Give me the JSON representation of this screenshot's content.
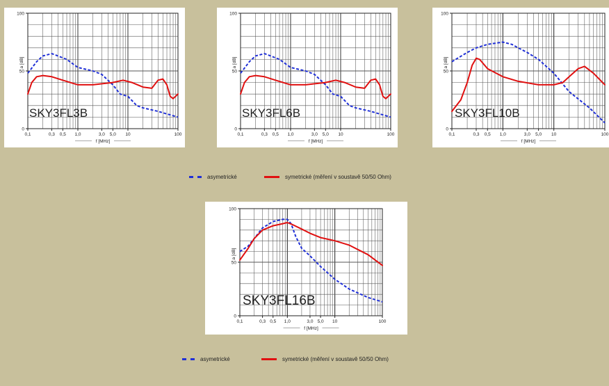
{
  "colors": {
    "background": "#c8c09c",
    "asym": "#1f2fd6",
    "sym": "#e01010"
  },
  "legend": {
    "asym_label": "asymetrické",
    "sym_label": "symetrické (měření v soustavě 50/50 Ohm)"
  },
  "chart_data": [
    {
      "type": "line",
      "title": "SKY3FL3B",
      "xlabel": "f [MHz]",
      "ylabel": "a [dB]",
      "xscale": "log",
      "xlim": [
        0.1,
        100
      ],
      "ylim": [
        0,
        100
      ],
      "xticks": [
        "0,1",
        "0,3",
        "0,5",
        "1,0",
        "3,0",
        "5,0",
        "10",
        "100"
      ],
      "yticks": [
        "0",
        "50",
        "100"
      ],
      "series": [
        {
          "name": "asymetrické",
          "style": "dashed",
          "x": [
            0.1,
            0.15,
            0.2,
            0.3,
            0.4,
            0.6,
            1.0,
            2.0,
            3.0,
            5.0,
            7.0,
            10,
            15,
            20,
            40,
            100
          ],
          "y": [
            48,
            58,
            63,
            65,
            63,
            60,
            53,
            50,
            47,
            38,
            30,
            28,
            20,
            18,
            15,
            10
          ]
        },
        {
          "name": "symetrické (měření v soustavě 50/50 Ohm)",
          "style": "solid",
          "x": [
            0.1,
            0.12,
            0.15,
            0.2,
            0.3,
            0.5,
            1.0,
            2.0,
            5.0,
            8.0,
            12,
            20,
            30,
            40,
            50,
            60,
            70,
            80,
            100
          ],
          "y": [
            30,
            40,
            45,
            46,
            45,
            42,
            38,
            38,
            40,
            42,
            40,
            36,
            35,
            42,
            43,
            38,
            28,
            26,
            30
          ]
        }
      ]
    },
    {
      "type": "line",
      "title": "SKY3FL6B",
      "xlabel": "f [MHz]",
      "ylabel": "a [dB]",
      "xscale": "log",
      "xlim": [
        0.1,
        100
      ],
      "ylim": [
        0,
        100
      ],
      "xticks": [
        "0,1",
        "0,3",
        "0,5",
        "1,0",
        "3,0",
        "5,0",
        "10",
        "100"
      ],
      "yticks": [
        "0",
        "50",
        "100"
      ],
      "series": [
        {
          "name": "asymetrické",
          "style": "dashed",
          "x": [
            0.1,
            0.15,
            0.2,
            0.3,
            0.4,
            0.6,
            1.0,
            2.0,
            3.0,
            5.0,
            7.0,
            10,
            15,
            20,
            40,
            100
          ],
          "y": [
            48,
            58,
            63,
            65,
            63,
            60,
            53,
            50,
            47,
            38,
            30,
            28,
            20,
            18,
            15,
            10
          ]
        },
        {
          "name": "symetrické (měření v soustavě 50/50 Ohm)",
          "style": "solid",
          "x": [
            0.1,
            0.12,
            0.15,
            0.2,
            0.3,
            0.5,
            1.0,
            2.0,
            5.0,
            8.0,
            12,
            20,
            30,
            40,
            50,
            60,
            70,
            80,
            100
          ],
          "y": [
            30,
            40,
            45,
            46,
            45,
            42,
            38,
            38,
            40,
            42,
            40,
            36,
            35,
            42,
            43,
            38,
            28,
            26,
            30
          ]
        }
      ]
    },
    {
      "type": "line",
      "title": "SKY3FL10B",
      "xlabel": "f [MHz]",
      "ylabel": "a [dB]",
      "xscale": "log",
      "xlim": [
        0.1,
        100
      ],
      "ylim": [
        0,
        100
      ],
      "xticks": [
        "0,1",
        "0,3",
        "0,5",
        "1,0",
        "3,0",
        "5,0",
        "10",
        "100"
      ],
      "yticks": [
        "0",
        "50",
        "100"
      ],
      "series": [
        {
          "name": "asymetrické",
          "style": "dashed",
          "x": [
            0.1,
            0.2,
            0.3,
            0.5,
            0.7,
            1.0,
            1.5,
            2.0,
            3.0,
            5.0,
            10,
            20,
            50,
            100
          ],
          "y": [
            58,
            66,
            70,
            73,
            74,
            75,
            73,
            70,
            66,
            60,
            48,
            32,
            18,
            5
          ]
        },
        {
          "name": "symetrické (měření v soustavě 50/50 Ohm)",
          "style": "solid",
          "x": [
            0.1,
            0.15,
            0.2,
            0.25,
            0.3,
            0.35,
            0.5,
            1.0,
            2.0,
            5.0,
            10,
            15,
            20,
            30,
            40,
            60,
            100
          ],
          "y": [
            15,
            25,
            40,
            55,
            61,
            60,
            52,
            45,
            41,
            38,
            38,
            40,
            45,
            52,
            54,
            48,
            38
          ]
        }
      ]
    },
    {
      "type": "line",
      "title": "SKY3FL16B",
      "xlabel": "f [MHz]",
      "ylabel": "a [dB]",
      "xscale": "log",
      "xlim": [
        0.1,
        100
      ],
      "ylim": [
        0,
        100
      ],
      "xticks": [
        "0,1",
        "0,3",
        "0,5",
        "1,0",
        "3,0",
        "5,0",
        "10",
        "100"
      ],
      "yticks": [
        "0",
        "50",
        "100"
      ],
      "series": [
        {
          "name": "asymetrické",
          "style": "dashed",
          "x": [
            0.1,
            0.15,
            0.2,
            0.3,
            0.5,
            0.8,
            1.0,
            1.2,
            1.5,
            2.0,
            3.0,
            5.0,
            10,
            20,
            50,
            100
          ],
          "y": [
            60,
            65,
            72,
            82,
            88,
            90,
            90,
            86,
            74,
            63,
            56,
            46,
            34,
            25,
            17,
            13
          ]
        },
        {
          "name": "symetrické (měření v soustavě 50/50 Ohm)",
          "style": "solid",
          "x": [
            0.1,
            0.15,
            0.2,
            0.3,
            0.5,
            0.8,
            1.0,
            1.3,
            2.0,
            3.0,
            5.0,
            10,
            20,
            50,
            100
          ],
          "y": [
            52,
            63,
            72,
            80,
            84,
            86,
            87,
            85,
            81,
            77,
            73,
            70,
            66,
            57,
            47
          ]
        }
      ]
    }
  ]
}
